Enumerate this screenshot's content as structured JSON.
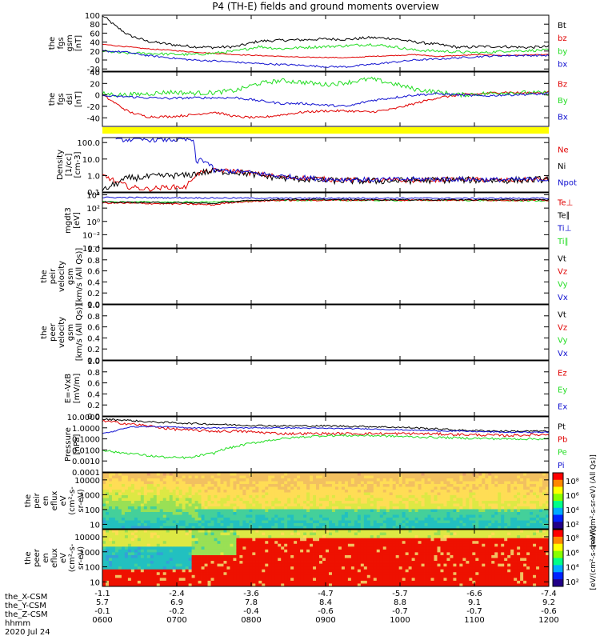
{
  "title": "P4 (TH-E) fields and ground moments overview",
  "colors": {
    "black": "#000000",
    "red": "#e00000",
    "green": "#22dd22",
    "blue": "#1010d0",
    "yellow": "#ffff00",
    "flag_red": "#ff0000"
  },
  "chart_data": [
    {
      "type": "line",
      "name": "fgs-gsm",
      "ylabel": [
        "the",
        "fgs",
        "gsm",
        "[nT]"
      ],
      "yrange": [
        -25,
        100
      ],
      "ticks": [
        100,
        80,
        60,
        40,
        20,
        0,
        -20
      ],
      "legend": [
        "Bt",
        "bz",
        "by",
        "bx"
      ],
      "series": [
        {
          "name": "Bt",
          "color": "black",
          "x": [
            0,
            0.03,
            0.06,
            0.1,
            0.15,
            0.2,
            0.25,
            0.3,
            0.35,
            0.4,
            0.45,
            0.5,
            0.55,
            0.6,
            0.65,
            0.7,
            0.75,
            0.8,
            0.85,
            0.9,
            0.95,
            1.0
          ],
          "y": [
            100,
            75,
            55,
            42,
            35,
            30,
            28,
            30,
            42,
            44,
            45,
            47,
            46,
            50,
            48,
            40,
            35,
            28,
            30,
            30,
            28,
            30
          ],
          "noise": 3
        },
        {
          "name": "bz",
          "color": "red",
          "x": [
            0,
            0.05,
            0.1,
            0.15,
            0.2,
            0.25,
            0.3,
            0.35,
            0.4,
            0.45,
            0.5,
            0.55,
            0.6,
            0.65,
            0.7,
            0.75,
            0.8,
            0.85,
            0.9,
            1.0
          ],
          "y": [
            35,
            30,
            25,
            22,
            18,
            15,
            12,
            10,
            8,
            6,
            6,
            5,
            8,
            10,
            12,
            8,
            10,
            12,
            10,
            12
          ],
          "noise": 1
        },
        {
          "name": "by",
          "color": "green",
          "x": [
            0,
            0.05,
            0.1,
            0.15,
            0.2,
            0.25,
            0.3,
            0.35,
            0.4,
            0.45,
            0.5,
            0.55,
            0.6,
            0.65,
            0.7,
            0.75,
            0.8,
            0.85,
            0.9,
            1.0
          ],
          "y": [
            20,
            15,
            15,
            13,
            12,
            15,
            20,
            30,
            25,
            28,
            30,
            32,
            35,
            30,
            22,
            20,
            18,
            16,
            20,
            22
          ],
          "noise": 3
        },
        {
          "name": "bx",
          "color": "blue",
          "x": [
            0,
            0.05,
            0.1,
            0.15,
            0.2,
            0.25,
            0.3,
            0.35,
            0.4,
            0.45,
            0.5,
            0.55,
            0.6,
            0.65,
            0.7,
            0.75,
            0.8,
            0.85,
            0.9,
            1.0
          ],
          "y": [
            20,
            18,
            10,
            5,
            0,
            -2,
            -5,
            -8,
            -10,
            -12,
            -15,
            -15,
            -10,
            -5,
            0,
            2,
            5,
            8,
            10,
            10
          ],
          "noise": 2
        }
      ]
    },
    {
      "type": "line",
      "name": "fgs-dsl",
      "ylabel": [
        "the",
        "fgs",
        "dsl",
        "[nT]"
      ],
      "yrange": [
        -55,
        40
      ],
      "ticks": [
        40,
        20,
        0,
        -20,
        -40
      ],
      "legend": [
        "Bz",
        "By",
        "Bx"
      ],
      "series": [
        {
          "name": "Bz",
          "color": "red",
          "x": [
            0,
            0.03,
            0.06,
            0.1,
            0.15,
            0.2,
            0.25,
            0.3,
            0.35,
            0.4,
            0.45,
            0.5,
            0.55,
            0.6,
            0.65,
            0.7,
            0.75,
            0.8,
            0.85,
            0.9,
            0.95,
            1.0
          ],
          "y": [
            0,
            -15,
            -30,
            -38,
            -38,
            -35,
            -30,
            -38,
            -40,
            -35,
            -30,
            -28,
            -28,
            -30,
            -25,
            -15,
            -5,
            0,
            2,
            5,
            3,
            5
          ],
          "noise": 2
        },
        {
          "name": "By",
          "color": "green",
          "x": [
            0,
            0.05,
            0.1,
            0.15,
            0.2,
            0.25,
            0.3,
            0.35,
            0.4,
            0.45,
            0.5,
            0.55,
            0.6,
            0.65,
            0.7,
            0.75,
            0.8,
            0.85,
            0.9,
            1.0
          ],
          "y": [
            2,
            0,
            2,
            5,
            3,
            4,
            8,
            20,
            25,
            22,
            18,
            22,
            28,
            20,
            10,
            5,
            0,
            2,
            4,
            3
          ],
          "noise": 4
        },
        {
          "name": "Bx",
          "color": "blue",
          "x": [
            0,
            0.05,
            0.1,
            0.15,
            0.2,
            0.25,
            0.3,
            0.35,
            0.4,
            0.45,
            0.5,
            0.55,
            0.6,
            0.65,
            0.7,
            0.75,
            0.8,
            0.85,
            0.9,
            1.0
          ],
          "y": [
            -2,
            -3,
            -5,
            -6,
            -5,
            -5,
            -5,
            -10,
            -15,
            -15,
            -18,
            -20,
            -10,
            -5,
            0,
            2,
            0,
            -2,
            0,
            2
          ],
          "noise": 2
        }
      ]
    },
    {
      "type": "line",
      "name": "density",
      "log": true,
      "ylabel": [
        "Density",
        "[1/cc]",
        "[cm-3]"
      ],
      "yrange": [
        0.1,
        200
      ],
      "ticks": [
        100.0,
        10.0,
        1.0,
        0.1
      ],
      "tick_labels": [
        "100.0",
        "10.0",
        "1.0",
        "0.1"
      ],
      "legend": [
        "Ne",
        "Ni",
        "Npot"
      ],
      "series": [
        {
          "name": "Ne",
          "color": "red",
          "x": [
            0,
            0.03,
            0.06,
            0.1,
            0.15,
            0.19,
            0.22,
            0.25,
            0.3,
            0.35,
            0.4,
            0.5,
            0.6,
            0.7,
            0.8,
            0.9,
            1.0
          ],
          "y": [
            1.0,
            0.4,
            0.2,
            0.15,
            0.2,
            0.2,
            1.5,
            2.0,
            1.8,
            1.2,
            0.8,
            0.6,
            0.5,
            0.5,
            0.6,
            0.5,
            0.6
          ],
          "noise": 0.15
        },
        {
          "name": "Ni",
          "color": "black",
          "x": [
            0,
            0.03,
            0.06,
            0.1,
            0.15,
            0.19,
            0.22,
            0.25,
            0.3,
            0.35,
            0.4,
            0.5,
            0.6,
            0.7,
            0.8,
            0.9,
            1.0
          ],
          "y": [
            0.1,
            0.3,
            0.7,
            0.8,
            1.0,
            1.0,
            1.5,
            1.8,
            1.6,
            1.0,
            0.7,
            0.5,
            0.45,
            0.5,
            0.55,
            0.5,
            0.6
          ],
          "noise": 0.2
        },
        {
          "name": "Npot",
          "color": "blue",
          "x": [
            0.03,
            0.06,
            0.1,
            0.15,
            0.19,
            0.2,
            0.21,
            0.22,
            0.25,
            0.3,
            0.35,
            0.4,
            0.5,
            0.6,
            0.7,
            0.8,
            0.9,
            1.0
          ],
          "y": [
            150,
            150,
            150,
            150,
            150,
            150,
            5,
            10,
            2.0,
            1.8,
            1.3,
            0.9,
            0.6,
            0.55,
            0.6,
            0.6,
            0.55,
            0.6
          ],
          "noise": 0.15
        }
      ]
    },
    {
      "type": "line",
      "name": "temperature",
      "log": true,
      "ylabel": [
        "mgdt3",
        "[eV]"
      ],
      "yrange": [
        0.0001,
        20000
      ],
      "ticks": [
        10000,
        100,
        1,
        0.01,
        0.0001
      ],
      "tick_labels": [
        "10⁴",
        "10²",
        "10⁰",
        "10⁻²",
        "10⁻⁴"
      ],
      "legend": [
        "Te⊥",
        "Te∥",
        "Ti⊥",
        "Ti∥"
      ],
      "series": [
        {
          "name": "Ti⊥",
          "color": "blue",
          "x": [
            0,
            0.2,
            0.4,
            0.6,
            0.8,
            1.0
          ],
          "y": [
            4000,
            3500,
            3000,
            3200,
            3000,
            3000
          ],
          "noise": 0.1
        },
        {
          "name": "Ti∥",
          "color": "green",
          "x": [
            0,
            0.2,
            0.3,
            0.4,
            0.6,
            0.8,
            1.0
          ],
          "y": [
            900,
            800,
            1000,
            1500,
            1400,
            1500,
            1200
          ],
          "noise": 0.1
        },
        {
          "name": "Te⊥",
          "color": "red",
          "x": [
            0,
            0.1,
            0.2,
            0.25,
            0.3,
            0.4,
            0.6,
            0.8,
            1.0
          ],
          "y": [
            600,
            500,
            400,
            300,
            800,
            1500,
            1600,
            1600,
            1500
          ],
          "noise": 0.12
        },
        {
          "name": "Te∥",
          "color": "black",
          "x": [
            0,
            0.1,
            0.2,
            0.25,
            0.3,
            0.4,
            0.6,
            0.8,
            1.0
          ],
          "y": [
            800,
            700,
            600,
            500,
            1000,
            2000,
            1800,
            1800,
            1800
          ],
          "noise": 0.1
        }
      ]
    },
    {
      "type": "line",
      "name": "peir-velocity",
      "ylabel": [
        "the",
        "peir",
        "velocity",
        "gsm",
        "[km/s (All Qs)]"
      ],
      "yrange": [
        0,
        1
      ],
      "ticks": [
        1.0,
        0.8,
        0.6,
        0.4,
        0.2,
        0.0
      ],
      "tick_labels": [
        "1.0",
        "0.8",
        "0.6",
        "0.4",
        "0.2",
        "0.0"
      ],
      "legend": [
        "Vt",
        "Vz",
        "Vy",
        "Vx"
      ],
      "series": []
    },
    {
      "type": "line",
      "name": "peer-velocity",
      "ylabel": [
        "the",
        "peer",
        "velocity",
        "gsm",
        "[km/s (All Qs)]"
      ],
      "yrange": [
        0,
        1
      ],
      "ticks": [
        1.0,
        0.8,
        0.6,
        0.4,
        0.2,
        0.0
      ],
      "tick_labels": [
        "1.0",
        "0.8",
        "0.6",
        "0.4",
        "0.2",
        "0.0"
      ],
      "legend": [
        "Vt",
        "Vz",
        "Vy",
        "Vx"
      ],
      "series": []
    },
    {
      "type": "line",
      "name": "e-field",
      "ylabel": [
        "E=-VxB",
        "[mV/m]"
      ],
      "yrange": [
        0,
        1
      ],
      "ticks": [
        1.0,
        0.8,
        0.6,
        0.4,
        0.2,
        0.0
      ],
      "tick_labels": [
        "1.0",
        "0.8",
        "0.6",
        "0.4",
        "0.2",
        "0.0"
      ],
      "legend": [
        "Ez",
        "Ey",
        "Ex"
      ],
      "series": []
    },
    {
      "type": "line",
      "name": "pressure",
      "log": true,
      "ylabel": [
        "Pressure",
        "[nPa]"
      ],
      "yrange": [
        0.0001,
        10
      ],
      "ticks": [
        10,
        1,
        0.1,
        0.01,
        0.001,
        0.0001
      ],
      "tick_labels": [
        "10.0000",
        "1.0000",
        "0.1000",
        "0.0100",
        "0.0010",
        "0.0001"
      ],
      "legend": [
        "Pt",
        "Pb",
        "Pe",
        "Pi"
      ],
      "series": [
        {
          "name": "Pt",
          "color": "black",
          "x": [
            0,
            0.05,
            0.1,
            0.15,
            0.2,
            0.3,
            0.4,
            0.5,
            0.6,
            0.7,
            0.8,
            0.9,
            1.0
          ],
          "y": [
            6,
            5,
            3.5,
            3,
            2.5,
            1.8,
            1.5,
            1.5,
            1.3,
            1.0,
            0.6,
            0.5,
            0.5
          ],
          "noise": 0.08
        },
        {
          "name": "Pb",
          "color": "red",
          "x": [
            0,
            0.05,
            0.1,
            0.15,
            0.2,
            0.25,
            0.3,
            0.35,
            0.4,
            0.5,
            0.6,
            0.7,
            0.8,
            0.9,
            1.0
          ],
          "y": [
            4,
            2.5,
            1.5,
            0.8,
            0.6,
            0.5,
            0.5,
            0.4,
            0.3,
            0.3,
            0.3,
            0.3,
            0.25,
            0.2,
            0.25
          ],
          "noise": 0.12
        },
        {
          "name": "Pe",
          "color": "green",
          "x": [
            0,
            0.03,
            0.06,
            0.1,
            0.15,
            0.2,
            0.25,
            0.3,
            0.35,
            0.4,
            0.5,
            0.6,
            0.7,
            0.8,
            0.9,
            1.0
          ],
          "y": [
            0.01,
            0.006,
            0.005,
            0.003,
            0.002,
            0.002,
            0.005,
            0.02,
            0.05,
            0.1,
            0.2,
            0.2,
            0.15,
            0.12,
            0.1,
            0.1
          ],
          "noise": 0.1
        },
        {
          "name": "Pi",
          "color": "blue",
          "x": [
            0,
            0.03,
            0.06,
            0.1,
            0.15,
            0.2,
            0.3,
            0.4,
            0.5,
            0.6,
            0.7,
            0.8,
            0.9,
            1.0
          ],
          "y": [
            0.3,
            0.5,
            1.2,
            1.3,
            1.2,
            1.0,
            1.0,
            1.0,
            0.9,
            0.8,
            0.6,
            0.5,
            0.4,
            0.4
          ],
          "noise": 0.05
        }
      ]
    },
    {
      "type": "heatmap",
      "name": "peir-en-eflux",
      "log": true,
      "ylabel": [
        "the",
        "peir",
        "en",
        "eflux",
        "eV",
        "(cm²-s-",
        "sr-eV)"
      ],
      "yrange": [
        5,
        30000
      ],
      "ticks": [
        10000,
        1000,
        100,
        10
      ],
      "tick_labels": [
        "10000",
        "1000",
        "100",
        "10"
      ],
      "colorbar_label": "[eV/(cm²-s-sr-eV) (All Qs)]"
    },
    {
      "type": "heatmap",
      "name": "peer-en-eflux",
      "log": true,
      "ylabel": [
        "the",
        "peer",
        "en",
        "eflux",
        "eV",
        "(cm²-s-",
        "sr-eV)"
      ],
      "yrange": [
        5,
        30000
      ],
      "ticks": [
        10000,
        1000,
        100,
        10
      ],
      "tick_labels": [
        "10000",
        "1000",
        "100",
        "10"
      ],
      "colorbar_label": "[eV/(cm²-s-sr-eV)]"
    }
  ],
  "colorbar": {
    "tick_labels": [
      "10⁸",
      "10⁶",
      "10⁴",
      "10²"
    ]
  },
  "xaxis": {
    "row_labels": [
      "the_X-CSM",
      "the_Y-CSM",
      "the_Z-CSM",
      "hhmm"
    ],
    "columns": [
      {
        "x": "-1.1",
        "y": "5.7",
        "z": "-0.1",
        "t": "0600"
      },
      {
        "x": "-2.4",
        "y": "6.9",
        "z": "-0.2",
        "t": "0700"
      },
      {
        "x": "-3.6",
        "y": "7.8",
        "z": "-0.4",
        "t": "0800"
      },
      {
        "x": "-4.7",
        "y": "8.4",
        "z": "-0.6",
        "t": "0900"
      },
      {
        "x": "-5.7",
        "y": "8.8",
        "z": "-0.7",
        "t": "1000"
      },
      {
        "x": "-6.6",
        "y": "9.1",
        "z": "-0.7",
        "t": "1100"
      },
      {
        "x": "-7.4",
        "y": "9.2",
        "z": "-0.6",
        "t": "1200"
      }
    ]
  },
  "date": "2020 Jul 24"
}
